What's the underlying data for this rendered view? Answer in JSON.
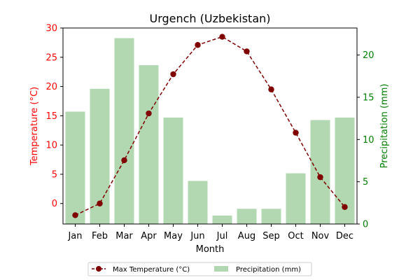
{
  "chart_data": {
    "type": "bar+line",
    "title": "Urgench (Uzbekistan)",
    "xlabel": "Month",
    "categories": [
      "Jan",
      "Feb",
      "Mar",
      "Apr",
      "May",
      "Jun",
      "Jul",
      "Aug",
      "Sep",
      "Oct",
      "Nov",
      "Dec"
    ],
    "y_left": {
      "label": "Temperature (°C)",
      "ylim": [
        -3.5,
        30
      ],
      "ticks": [
        0,
        5,
        10,
        15,
        20,
        25,
        30
      ],
      "color": "#ff0000"
    },
    "y_right": {
      "label": "Precipitation (mm)",
      "ylim": [
        0,
        23.2
      ],
      "ticks": [
        0,
        5,
        10,
        15,
        20
      ],
      "color": "#008000"
    },
    "series": [
      {
        "name": "Max Temperature (°C)",
        "kind": "line",
        "axis": "left",
        "color": "#800000",
        "values": [
          -2.0,
          0.0,
          7.4,
          15.4,
          22.1,
          27.1,
          28.5,
          26.0,
          19.5,
          12.1,
          4.5,
          -0.6
        ]
      },
      {
        "name": "Precipitation (mm)",
        "kind": "bar",
        "axis": "right",
        "color": "#b2d8b2",
        "values": [
          13.3,
          16.0,
          22.0,
          18.8,
          12.6,
          5.1,
          1.0,
          1.8,
          1.8,
          6.0,
          12.3,
          12.6
        ]
      }
    ],
    "legend": {
      "placement": "bottom-center"
    }
  }
}
